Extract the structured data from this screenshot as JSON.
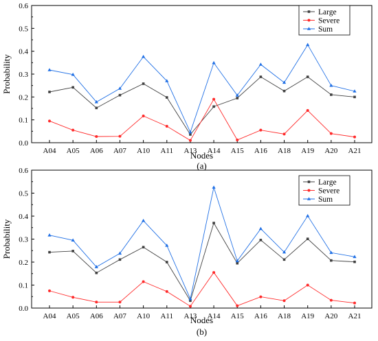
{
  "chart_data": [
    {
      "type": "line",
      "label": "(a)",
      "xlabel": "Nodes",
      "ylabel": "Probability",
      "ylim": [
        0,
        0.6
      ],
      "yticks": [
        "0.0",
        "0.1",
        "0.2",
        "0.3",
        "0.4",
        "0.5",
        "0.6"
      ],
      "grid": false,
      "legend": "top-right",
      "categories": [
        "A04",
        "A05",
        "A06",
        "A07",
        "A10",
        "A11",
        "A13",
        "A14",
        "A15",
        "A16",
        "A18",
        "A19",
        "A20",
        "A21"
      ],
      "series": [
        {
          "name": "Large",
          "marker": "square",
          "color": "#404040",
          "values": [
            0.222,
            0.242,
            0.152,
            0.208,
            0.258,
            0.198,
            0.036,
            0.158,
            0.195,
            0.288,
            0.226,
            0.288,
            0.21,
            0.2
          ]
        },
        {
          "name": "Severe",
          "marker": "circle",
          "color": "#ff2a2a",
          "values": [
            0.095,
            0.055,
            0.027,
            0.028,
            0.117,
            0.072,
            0.01,
            0.19,
            0.012,
            0.055,
            0.038,
            0.141,
            0.04,
            0.025
          ]
        },
        {
          "name": "Sum",
          "marker": "triangle",
          "color": "#1f6fe5",
          "values": [
            0.318,
            0.298,
            0.178,
            0.237,
            0.376,
            0.27,
            0.046,
            0.349,
            0.207,
            0.342,
            0.263,
            0.428,
            0.25,
            0.225
          ]
        }
      ]
    },
    {
      "type": "line",
      "label": "(b)",
      "xlabel": "Nodes",
      "ylabel": "Probability",
      "ylim": [
        0,
        0.6
      ],
      "yticks": [
        "0.0",
        "0.1",
        "0.2",
        "0.3",
        "0.4",
        "0.5",
        "0.6"
      ],
      "grid": false,
      "legend": "top-right",
      "categories": [
        "A04",
        "A05",
        "A06",
        "A07",
        "A10",
        "A11",
        "A13",
        "A14",
        "A15",
        "A16",
        "A18",
        "A19",
        "A20",
        "A21"
      ],
      "series": [
        {
          "name": "Large",
          "marker": "square",
          "color": "#404040",
          "values": [
            0.243,
            0.248,
            0.153,
            0.211,
            0.265,
            0.2,
            0.032,
            0.37,
            0.195,
            0.296,
            0.211,
            0.301,
            0.207,
            0.201
          ]
        },
        {
          "name": "Severe",
          "marker": "circle",
          "color": "#ff2a2a",
          "values": [
            0.075,
            0.047,
            0.026,
            0.026,
            0.115,
            0.072,
            0.008,
            0.155,
            0.01,
            0.049,
            0.032,
            0.1,
            0.034,
            0.022
          ]
        },
        {
          "name": "Sum",
          "marker": "triangle",
          "color": "#1f6fe5",
          "values": [
            0.317,
            0.295,
            0.179,
            0.238,
            0.38,
            0.272,
            0.04,
            0.525,
            0.205,
            0.345,
            0.243,
            0.401,
            0.241,
            0.223
          ]
        }
      ]
    }
  ]
}
